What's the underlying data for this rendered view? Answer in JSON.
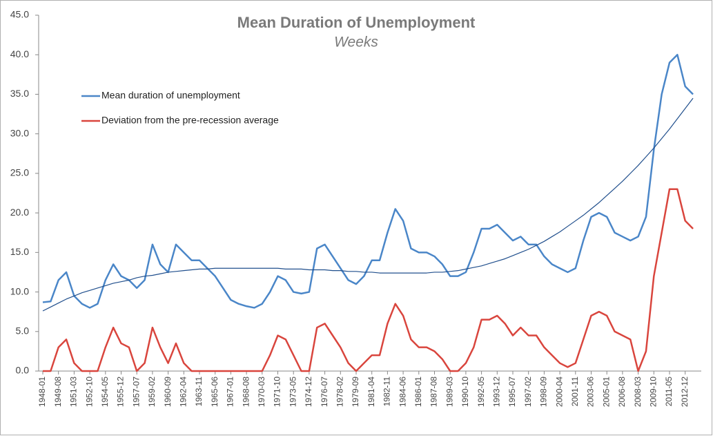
{
  "chart_data": {
    "type": "line",
    "title": "Mean Duration of Unemployment",
    "subtitle": "Weeks",
    "categories": [
      "1948-01",
      null,
      "1949-08",
      null,
      "1951-03",
      null,
      "1952-10",
      null,
      "1954-05",
      null,
      "1955-12",
      null,
      "1957-07",
      null,
      "1959-02",
      null,
      "1960-09",
      null,
      "1962-04",
      null,
      "1963-11",
      null,
      "1965-06",
      null,
      "1967-01",
      null,
      "1968-08",
      null,
      "1970-03",
      null,
      "1971-10",
      null,
      "1973-05",
      null,
      "1974-12",
      null,
      "1976-07",
      null,
      "1978-02",
      null,
      "1979-09",
      null,
      "1981-04",
      null,
      "1982-11",
      null,
      "1984-06",
      null,
      "1986-01",
      null,
      "1987-08",
      null,
      "1989-03",
      null,
      "1990-10",
      null,
      "1992-05",
      null,
      "1993-12",
      null,
      "1995-07",
      null,
      "1997-02",
      null,
      "1998-09",
      null,
      "2000-04",
      null,
      "2001-11",
      null,
      "2003-06",
      null,
      "2005-01",
      null,
      "2006-08",
      null,
      "2008-03",
      null,
      "2009-10",
      null,
      "2011-05",
      null,
      "2012-12",
      null
    ],
    "series": [
      {
        "name": "Mean duration of unemployment",
        "color": "#4a86c8",
        "values": [
          8.7,
          8.8,
          11.5,
          12.5,
          9.5,
          8.5,
          8.0,
          8.5,
          11.5,
          13.5,
          12,
          11.5,
          10.5,
          11.5,
          16,
          13.5,
          12.5,
          16,
          15,
          14,
          14,
          13,
          12,
          10.5,
          9,
          8.5,
          8.2,
          8,
          8.5,
          10,
          12,
          11.5,
          10,
          9.8,
          10,
          15.5,
          16,
          14.5,
          13,
          11.5,
          11,
          12,
          14,
          14,
          17.5,
          20.5,
          19,
          15.5,
          15,
          15,
          14.5,
          13.5,
          12,
          12,
          12.5,
          15,
          18,
          18,
          18.5,
          17.5,
          16.5,
          17,
          16,
          16,
          14.5,
          13.5,
          13,
          12.5,
          13,
          16.5,
          19.5,
          20,
          19.5,
          17.5,
          17,
          16.5,
          17,
          19.5,
          28,
          35,
          39,
          40,
          36,
          35
        ]
      },
      {
        "name": "Deviation from the pre-recession average",
        "color": "#d9453d",
        "values": [
          0,
          0,
          3,
          4,
          1,
          0,
          0,
          0,
          3,
          5.5,
          3.5,
          3,
          0,
          1,
          5.5,
          3,
          1,
          3.5,
          1,
          0,
          0,
          0,
          0,
          0,
          0,
          0,
          0,
          0,
          0,
          2,
          4.5,
          4,
          2,
          0,
          0,
          5.5,
          6,
          4.5,
          3,
          1,
          0,
          1,
          2,
          2,
          6,
          8.5,
          7,
          4,
          3,
          3,
          2.5,
          1.5,
          0,
          0,
          1,
          3,
          6.5,
          6.5,
          7,
          6,
          4.5,
          5.5,
          4.5,
          4.5,
          3,
          2,
          1,
          0.5,
          1,
          4,
          7,
          7.5,
          7,
          5,
          4.5,
          4,
          0,
          2.5,
          12,
          17.5,
          23,
          23,
          19,
          18
        ]
      },
      {
        "color": "#1f4e8c",
        "values": [
          7.6,
          8.1,
          8.6,
          9.1,
          9.5,
          9.9,
          10.2,
          10.5,
          10.8,
          11.1,
          11.3,
          11.5,
          11.8,
          12.0,
          12.1,
          12.3,
          12.5,
          12.6,
          12.7,
          12.8,
          12.9,
          12.9,
          13.0,
          13.0,
          13.0,
          13.0,
          13.0,
          13.0,
          13.0,
          13.0,
          13.0,
          12.9,
          12.9,
          12.9,
          12.8,
          12.8,
          12.8,
          12.7,
          12.7,
          12.6,
          12.6,
          12.5,
          12.5,
          12.4,
          12.4,
          12.4,
          12.4,
          12.4,
          12.4,
          12.4,
          12.5,
          12.5,
          12.6,
          12.7,
          12.9,
          13.1,
          13.3,
          13.6,
          13.9,
          14.2,
          14.6,
          15.0,
          15.4,
          15.9,
          16.4,
          17.0,
          17.6,
          18.3,
          19.0,
          19.7,
          20.5,
          21.3,
          22.2,
          23.1,
          24.0,
          25.0,
          26.0,
          27.1,
          28.2,
          29.4,
          30.6,
          31.9,
          33.2,
          34.5
        ]
      }
    ],
    "ylim": [
      0,
      45
    ],
    "yticks": [
      {
        "value": 0,
        "label": "0.0"
      },
      {
        "value": 5,
        "label": "5.0"
      },
      {
        "value": 10,
        "label": "10.0"
      },
      {
        "value": 15,
        "label": "15.0"
      },
      {
        "value": 20,
        "label": "20.0"
      },
      {
        "value": 25,
        "label": "25.0"
      },
      {
        "value": 30,
        "label": "30.0"
      },
      {
        "value": 35,
        "label": "35.0"
      },
      {
        "value": 40,
        "label": "40.0"
      },
      {
        "value": 45,
        "label": "45.0"
      }
    ],
    "legend": "upper left"
  }
}
